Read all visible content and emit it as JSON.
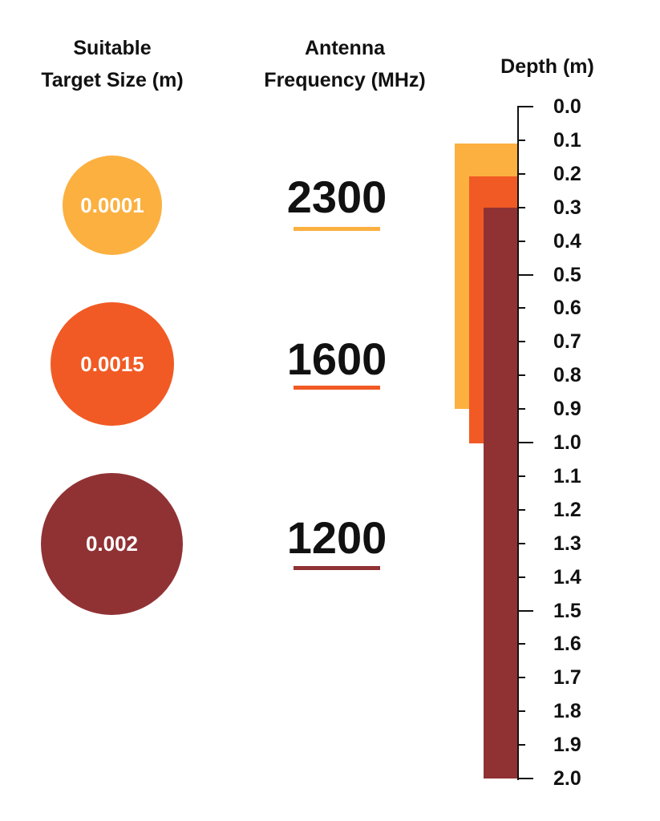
{
  "headers": {
    "size": [
      "Suitable",
      "Target Size (m)"
    ],
    "frequency": [
      "Antenna",
      "Frequency (MHz)"
    ],
    "depth": "Depth (m)"
  },
  "colors": {
    "antenna_2300": "#FBB040",
    "antenna_1600": "#F15A24",
    "antenna_1200": "#903234",
    "axis": "#111111"
  },
  "rows": [
    {
      "target_size": "0.0001",
      "frequency": "2300",
      "color": "#FBB040"
    },
    {
      "target_size": "0.0015",
      "frequency": "1600",
      "color": "#F15A24"
    },
    {
      "target_size": "0.002",
      "frequency": "1200",
      "color": "#903234"
    }
  ],
  "depth_ticks": [
    "0.0",
    "0.1",
    "0.2",
    "0.3",
    "0.4",
    "0.5",
    "0.6",
    "0.7",
    "0.8",
    "0.9",
    "1.0",
    "1.1",
    "1.2",
    "1.3",
    "1.4",
    "1.5",
    "1.6",
    "1.7",
    "1.8",
    "1.9",
    "2.0"
  ],
  "chart_data": {
    "type": "bar",
    "orientation": "vertical-range",
    "title": "",
    "categories": [
      "2300 MHz",
      "1600 MHz",
      "1200 MHz"
    ],
    "series": [
      {
        "name": "2300 MHz",
        "target_size_m": 0.0001,
        "depth_start_m": 0.1,
        "depth_end_m": 0.9,
        "color": "#FBB040"
      },
      {
        "name": "1600 MHz",
        "target_size_m": 0.0015,
        "depth_start_m": 0.2,
        "depth_end_m": 1.0,
        "color": "#F15A24"
      },
      {
        "name": "1200 MHz",
        "target_size_m": 0.002,
        "depth_start_m": 0.3,
        "depth_end_m": 2.0,
        "color": "#903234"
      }
    ],
    "ylabel": "Depth (m)",
    "ylim": [
      0.0,
      2.0
    ],
    "y_inverted": true,
    "column_labels": [
      "Suitable Target Size (m)",
      "Antenna Frequency (MHz)",
      "Depth (m)"
    ],
    "grid": false,
    "legend": "none"
  }
}
